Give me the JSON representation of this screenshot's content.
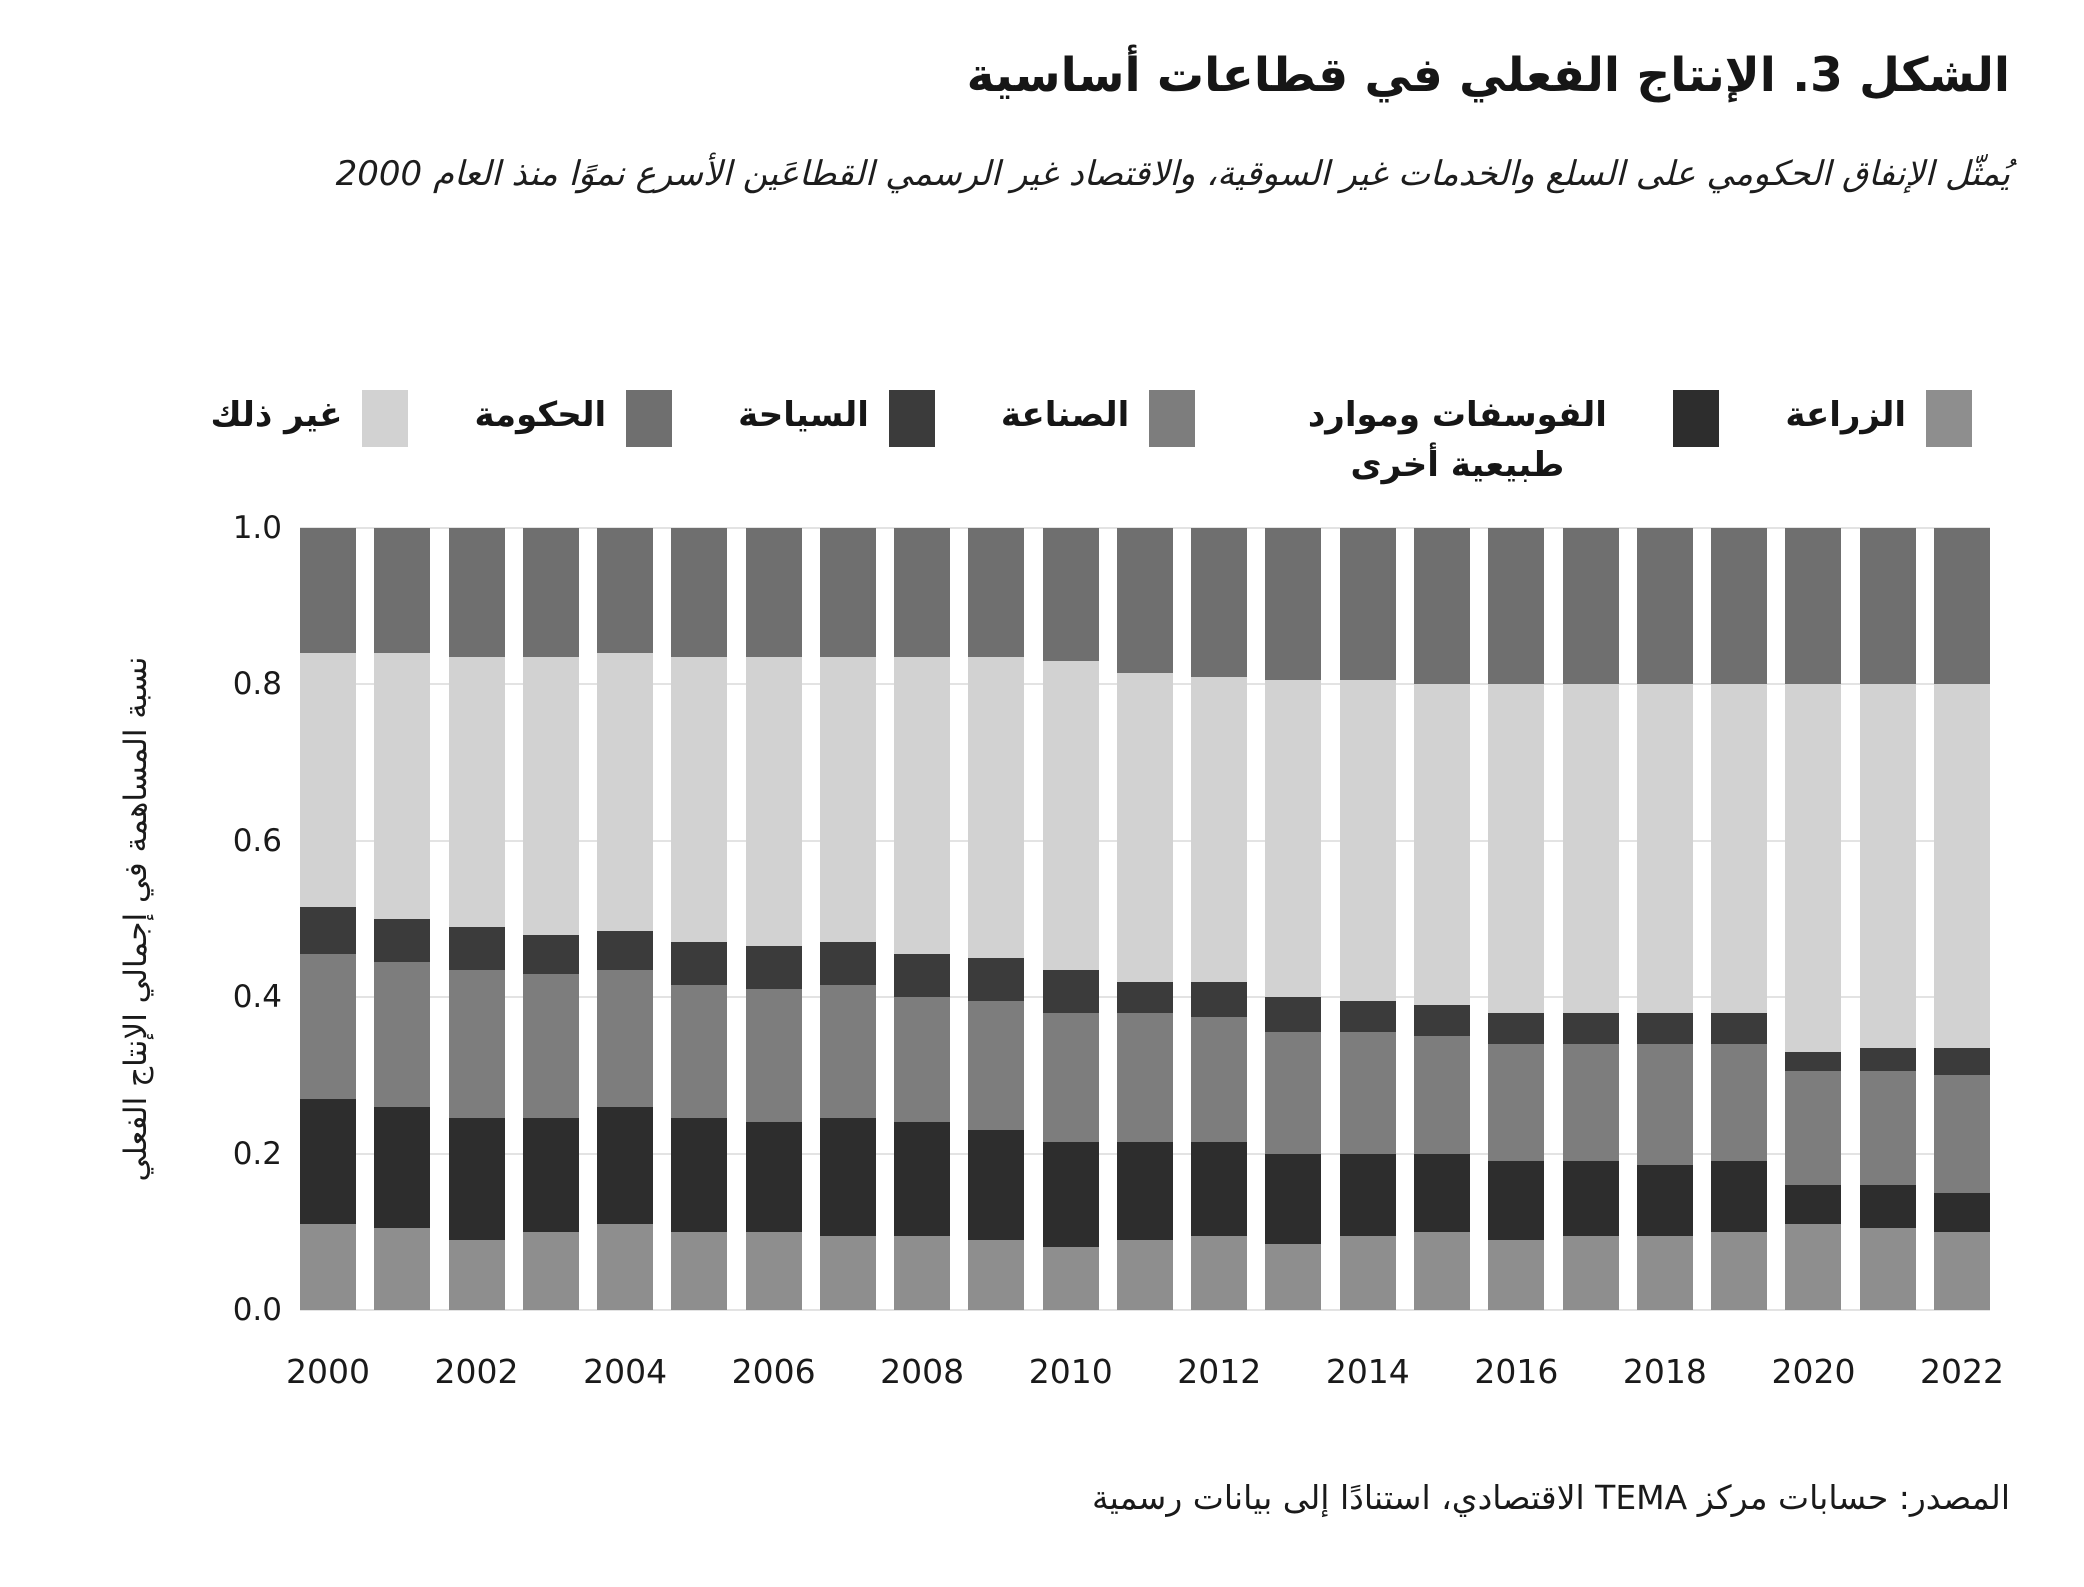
{
  "header": {
    "title": "الشكل 3. الإنتاج الفعلي في قطاعات أساسية",
    "subtitle": "يُمثّل الإنفاق الحكومي على السلع والخدمات غير السوقية، والاقتصاد غير الرسمي القطاعَين الأسرع نموًا منذ العام 2000"
  },
  "legend": {
    "items": [
      {
        "label": "الزراعة",
        "color": "#8e8e8e"
      },
      {
        "label": "الفوسفات وموارد طبيعية أخرى",
        "color": "#2d2d2d"
      },
      {
        "label": "الصناعة",
        "color": "#7d7d7d"
      },
      {
        "label": "السياحة",
        "color": "#3b3b3b"
      },
      {
        "label": "الحكومة",
        "color": "#6f6f6f"
      },
      {
        "label": "غير ذلك",
        "color": "#d2d2d2"
      }
    ]
  },
  "chart_data": {
    "type": "bar",
    "stacked": true,
    "categories": [
      2000,
      2001,
      2002,
      2003,
      2004,
      2005,
      2006,
      2007,
      2008,
      2009,
      2010,
      2011,
      2012,
      2013,
      2014,
      2015,
      2016,
      2017,
      2018,
      2019,
      2020,
      2021,
      2022
    ],
    "stack_order_bottom_to_top": [
      "agriculture",
      "phosphates",
      "industry",
      "tourism",
      "other",
      "government"
    ],
    "series": [
      {
        "key": "agriculture",
        "name": "الزراعة",
        "color": "#8e8e8e",
        "values": [
          0.11,
          0.105,
          0.09,
          0.1,
          0.11,
          0.1,
          0.1,
          0.095,
          0.095,
          0.09,
          0.08,
          0.09,
          0.095,
          0.085,
          0.095,
          0.1,
          0.09,
          0.095,
          0.095,
          0.1,
          0.11,
          0.105,
          0.1
        ]
      },
      {
        "key": "phosphates",
        "name": "الفوسفات وموارد طبيعية أخرى",
        "color": "#2d2d2d",
        "values": [
          0.16,
          0.155,
          0.155,
          0.145,
          0.15,
          0.145,
          0.14,
          0.15,
          0.145,
          0.14,
          0.135,
          0.125,
          0.12,
          0.115,
          0.105,
          0.1,
          0.1,
          0.095,
          0.09,
          0.09,
          0.05,
          0.055,
          0.05
        ]
      },
      {
        "key": "industry",
        "name": "الصناعة",
        "color": "#7d7d7d",
        "values": [
          0.185,
          0.185,
          0.19,
          0.185,
          0.175,
          0.17,
          0.17,
          0.17,
          0.16,
          0.165,
          0.165,
          0.165,
          0.16,
          0.155,
          0.155,
          0.15,
          0.15,
          0.15,
          0.155,
          0.15,
          0.145,
          0.145,
          0.15
        ]
      },
      {
        "key": "tourism",
        "name": "السياحة",
        "color": "#3b3b3b",
        "values": [
          0.06,
          0.055,
          0.055,
          0.05,
          0.05,
          0.055,
          0.055,
          0.055,
          0.055,
          0.055,
          0.055,
          0.04,
          0.045,
          0.045,
          0.04,
          0.04,
          0.04,
          0.04,
          0.04,
          0.04,
          0.025,
          0.03,
          0.035
        ]
      },
      {
        "key": "other",
        "name": "غير ذلك",
        "color": "#d2d2d2",
        "values": [
          0.325,
          0.34,
          0.345,
          0.355,
          0.355,
          0.365,
          0.37,
          0.365,
          0.38,
          0.385,
          0.395,
          0.395,
          0.39,
          0.405,
          0.41,
          0.41,
          0.42,
          0.42,
          0.42,
          0.42,
          0.47,
          0.465,
          0.465
        ]
      },
      {
        "key": "government",
        "name": "الحكومة",
        "color": "#6f6f6f",
        "values": [
          0.16,
          0.16,
          0.165,
          0.165,
          0.16,
          0.165,
          0.165,
          0.165,
          0.165,
          0.165,
          0.17,
          0.185,
          0.19,
          0.195,
          0.195,
          0.2,
          0.2,
          0.2,
          0.2,
          0.2,
          0.2,
          0.2,
          0.2
        ]
      }
    ],
    "ylabel": "نسبة المساهمة في إجمالي الإنتاج الفعلي",
    "xlabel": "",
    "ylim": [
      0,
      1
    ],
    "yticks": [
      {
        "label": "0.0",
        "value": 0.0
      },
      {
        "label": "0.2",
        "value": 0.2
      },
      {
        "label": "0.4",
        "value": 0.4
      },
      {
        "label": "0.6",
        "value": 0.6
      },
      {
        "label": "0.8",
        "value": 0.8
      },
      {
        "label": "1.0",
        "value": 1.0
      }
    ],
    "xticks": [
      "2000",
      "2002",
      "2004",
      "2006",
      "2008",
      "2010",
      "2012",
      "2014",
      "2016",
      "2018",
      "2020",
      "2022"
    ],
    "grid": true,
    "legend_position": "top"
  },
  "footer": {
    "source": "المصدر: حسابات مركز TEMA الاقتصادي، استنادًا إلى بيانات رسمية"
  }
}
